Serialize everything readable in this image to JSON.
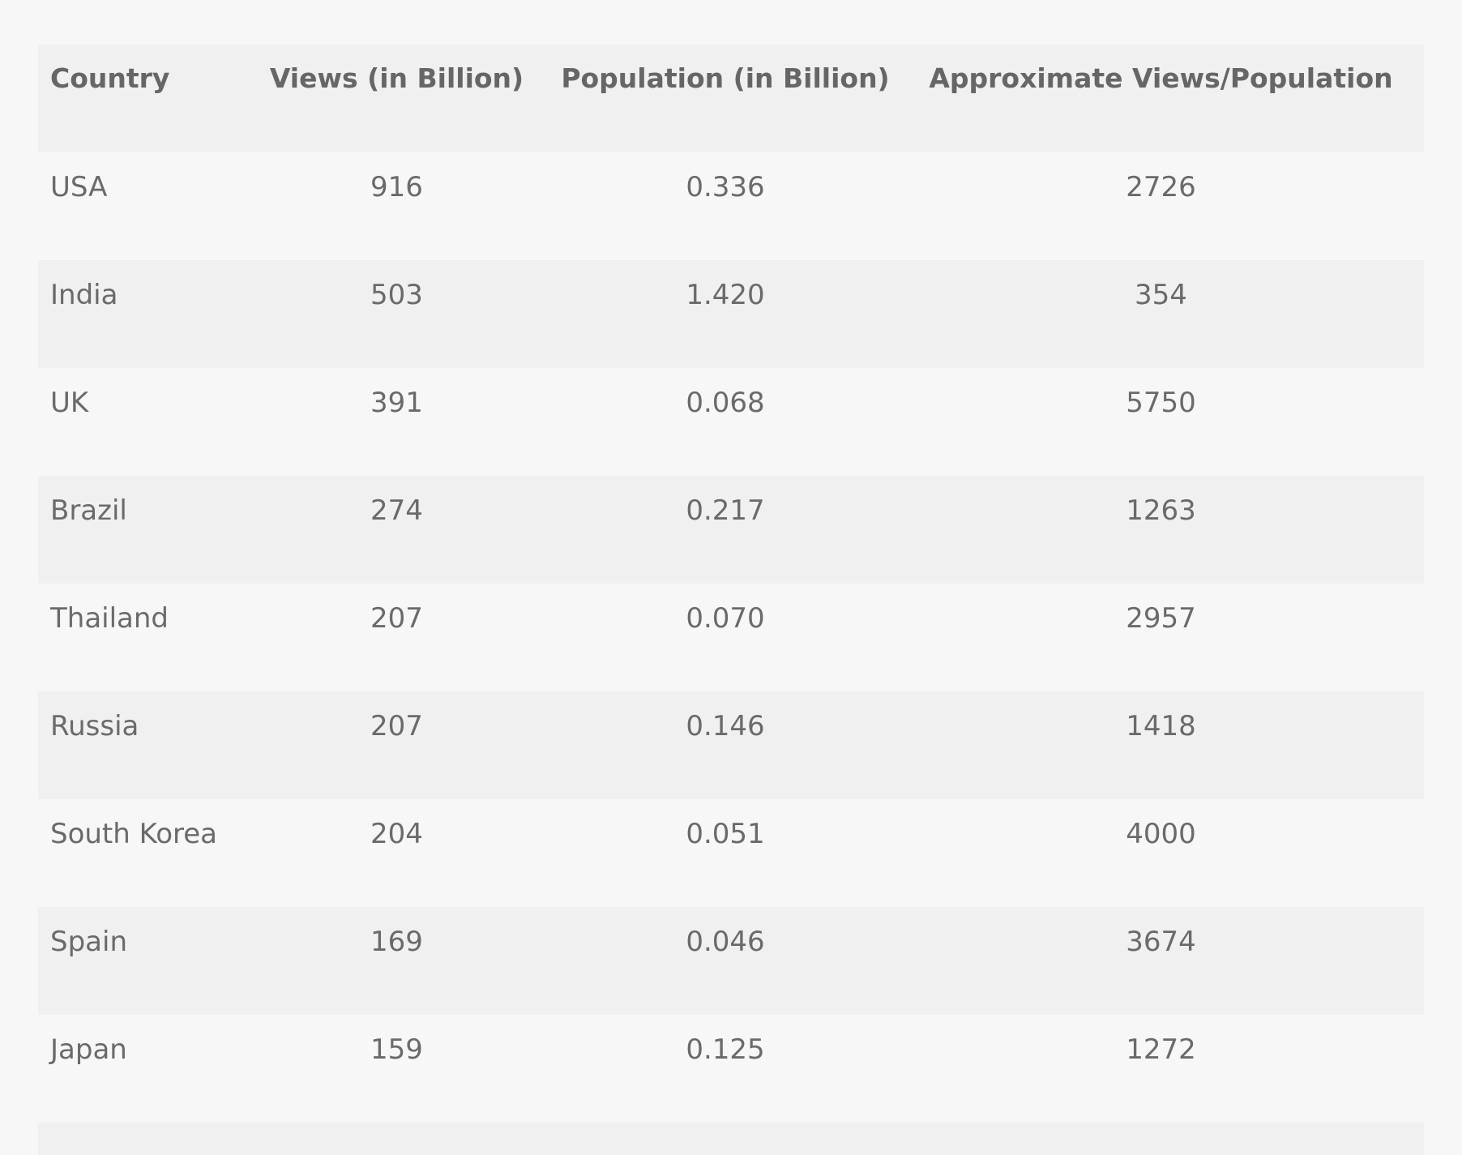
{
  "table": {
    "headers": [
      "Country",
      "Views (in Billion)",
      "Population (in Billion)",
      "Approximate Views/Population"
    ],
    "rows": [
      [
        "USA",
        "916",
        "0.336",
        "2726"
      ],
      [
        "India",
        "503",
        "1.420",
        "354"
      ],
      [
        "UK",
        "391",
        "0.068",
        "5750"
      ],
      [
        "Brazil",
        "274",
        "0.217",
        "1263"
      ],
      [
        "Thailand",
        "207",
        "0.070",
        "2957"
      ],
      [
        "Russia",
        "207",
        "0.146",
        "1418"
      ],
      [
        "South Korea",
        "204",
        "0.051",
        "4000"
      ],
      [
        "Spain",
        "169",
        "0.046",
        "3674"
      ],
      [
        "Japan",
        "159",
        "0.125",
        "1272"
      ]
    ]
  },
  "colors": {
    "page_background": "#f7f7f7",
    "row_alt_background": "#f0f0f0",
    "text": "#666666"
  }
}
